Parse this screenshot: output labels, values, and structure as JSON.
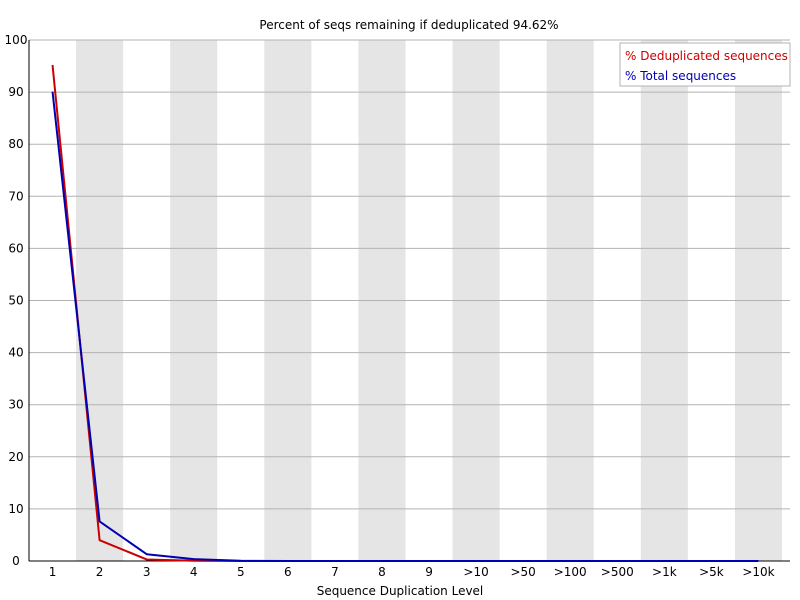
{
  "chart_data": {
    "type": "line",
    "title": "Percent of seqs remaining if deduplicated 94.62%",
    "xlabel": "Sequence Duplication Level",
    "ylabel": "",
    "categories": [
      "1",
      "2",
      "3",
      "4",
      "5",
      "6",
      "7",
      "8",
      "9",
      ">10",
      ">50",
      ">100",
      ">500",
      ">1k",
      ">5k",
      ">10k"
    ],
    "ylim": [
      0,
      100
    ],
    "yticks": [
      0,
      10,
      20,
      30,
      40,
      50,
      60,
      70,
      80,
      90,
      100
    ],
    "grid": true,
    "legend_position": "top-right",
    "series": [
      {
        "name": "% Deduplicated sequences",
        "color": "#cc0000",
        "values": [
          95.2,
          4.0,
          0.3,
          0.05,
          0.0,
          0.0,
          0.0,
          0.0,
          0.0,
          0.0,
          0.0,
          0.0,
          0.0,
          0.0,
          0.0,
          0.0
        ]
      },
      {
        "name": "% Total sequences",
        "color": "#0000b3",
        "values": [
          90.1,
          7.6,
          1.3,
          0.35,
          0.05,
          0.0,
          0.0,
          0.0,
          0.0,
          0.0,
          0.0,
          0.0,
          0.0,
          0.0,
          0.0,
          0.0
        ]
      }
    ]
  }
}
